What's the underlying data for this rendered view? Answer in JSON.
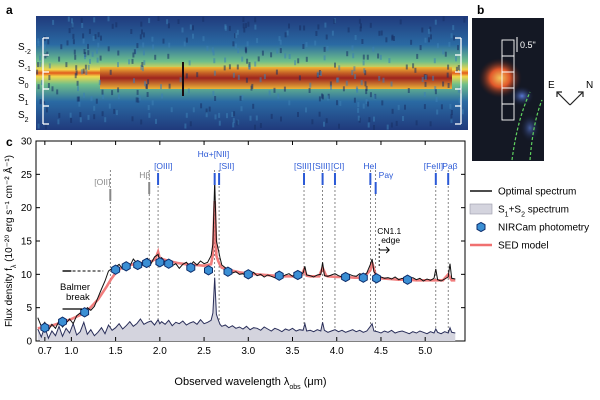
{
  "panel_labels": {
    "a": "a",
    "b": "b",
    "c": "c"
  },
  "panel_a": {
    "row_labels": [
      {
        "main": "S",
        "sub": "-2"
      },
      {
        "main": "S",
        "sub": "-1"
      },
      {
        "main": "S",
        "sub": "0"
      },
      {
        "main": "S",
        "sub": "1"
      },
      {
        "main": "S",
        "sub": "2"
      }
    ]
  },
  "panel_b": {
    "scale_label": "0.5\"",
    "compass": {
      "east": "E",
      "north": "N"
    }
  },
  "colors": {
    "optimal": "#111111",
    "s1s2_fill": "#d4d4de",
    "s1s2_line": "#2a2f5a",
    "photometry_fill": "#3b8fd4",
    "photometry_edge": "#0d2d6b",
    "sed": "#f07070",
    "line_marker": "#2b59d6",
    "gray_marker": "#888888"
  },
  "chart_data": {
    "type": "line",
    "xlabel": "Observed wavelength λ",
    "xlabel_sub": "obs",
    "xlabel_unit": " (μm)",
    "ylabel": "Flux density f",
    "ylabel_sub": "λ",
    "ylabel_units": " (10⁻²⁰ erg s⁻¹ cm⁻² Å⁻¹)",
    "xlim": [
      0.6,
      5.45
    ],
    "ylim": [
      0,
      30
    ],
    "x_ticks": [
      0.7,
      1.0,
      1.5,
      2.0,
      2.5,
      3.0,
      3.5,
      4.0,
      4.5,
      5.0
    ],
    "x_tick_labels": [
      "0.7",
      "1.0",
      "1.5",
      "2.0",
      "2.5",
      "3.0",
      "3.5",
      "4.0",
      "4.5",
      "5.0"
    ],
    "y_ticks": [
      0,
      5,
      10,
      15,
      20,
      25,
      30
    ],
    "y_tick_labels": [
      "0",
      "5",
      "10",
      "15",
      "20",
      "25",
      "30"
    ],
    "legend": {
      "position": "right",
      "entries": [
        {
          "key": "optimal",
          "label": "Optimal spectrum"
        },
        {
          "key": "s1s2",
          "label": "S",
          "parts": [
            "S",
            "1",
            "+S",
            "2",
            " spectrum"
          ]
        },
        {
          "key": "phot",
          "label": "NIRCam photometry"
        },
        {
          "key": "sed",
          "label": "SED model"
        }
      ]
    },
    "emission_lines": [
      {
        "name": "[OII]",
        "x": 1.44,
        "color": "gray"
      },
      {
        "name": "Hβ",
        "x": 1.88,
        "color": "gray"
      },
      {
        "name": "[OIII]",
        "x": 1.98,
        "color": "blue"
      },
      {
        "name": "Hα+[NII]",
        "x": 2.62,
        "color": "blue"
      },
      {
        "name": "[SII]",
        "x": 2.67,
        "color": "blue"
      },
      {
        "name": "[SIII]",
        "x": 3.63,
        "color": "blue"
      },
      {
        "name": "[SIII]",
        "x": 3.84,
        "color": "blue"
      },
      {
        "name": "[CI]",
        "x": 3.98,
        "color": "blue"
      },
      {
        "name": "HeI",
        "x": 4.38,
        "color": "blue"
      },
      {
        "name": "Paγ",
        "x": 4.44,
        "color": "blue"
      },
      {
        "name": "[FeII]",
        "x": 5.12,
        "color": "blue"
      },
      {
        "name": "Paβ",
        "x": 5.26,
        "color": "blue"
      }
    ],
    "annotations": {
      "balmer_line1": "Balmer",
      "balmer_line2": "break",
      "cn_line1": "CN1.1",
      "cn_line2": "edge"
    },
    "balmer_levels": {
      "upper": 10.5,
      "lower": 4.8
    },
    "series": [
      {
        "name": "Optimal spectrum",
        "x": [
          0.62,
          0.66,
          0.7,
          0.74,
          0.78,
          0.82,
          0.86,
          0.9,
          0.94,
          0.98,
          1.02,
          1.06,
          1.1,
          1.14,
          1.18,
          1.22,
          1.26,
          1.3,
          1.34,
          1.38,
          1.42,
          1.46,
          1.5,
          1.54,
          1.58,
          1.62,
          1.66,
          1.7,
          1.74,
          1.78,
          1.82,
          1.86,
          1.9,
          1.94,
          1.98,
          2.0,
          2.02,
          2.06,
          2.1,
          2.14,
          2.18,
          2.22,
          2.26,
          2.3,
          2.34,
          2.38,
          2.42,
          2.46,
          2.5,
          2.54,
          2.58,
          2.6,
          2.62,
          2.64,
          2.66,
          2.68,
          2.7,
          2.74,
          2.78,
          2.82,
          2.86,
          2.9,
          2.94,
          2.98,
          3.02,
          3.06,
          3.1,
          3.14,
          3.18,
          3.22,
          3.26,
          3.3,
          3.34,
          3.38,
          3.42,
          3.46,
          3.5,
          3.54,
          3.58,
          3.62,
          3.64,
          3.66,
          3.7,
          3.74,
          3.78,
          3.82,
          3.84,
          3.86,
          3.9,
          3.94,
          3.98,
          4.02,
          4.06,
          4.1,
          4.14,
          4.18,
          4.22,
          4.26,
          4.3,
          4.34,
          4.38,
          4.4,
          4.42,
          4.46,
          4.5,
          4.54,
          4.58,
          4.62,
          4.66,
          4.7,
          4.74,
          4.78,
          4.82,
          4.86,
          4.9,
          4.94,
          4.98,
          5.02,
          5.06,
          5.1,
          5.12,
          5.14,
          5.18,
          5.22,
          5.26,
          5.28,
          5.3,
          5.34
        ],
        "y": [
          3.5,
          2.2,
          2.8,
          1.6,
          2.5,
          1.9,
          3.0,
          2.1,
          2.7,
          3.3,
          2.6,
          3.8,
          4.2,
          3.9,
          5.0,
          4.6,
          5.2,
          6.5,
          7.8,
          9.0,
          10.5,
          10.9,
          11.1,
          11.5,
          10.8,
          11.6,
          11.2,
          12.3,
          11.7,
          11.0,
          12.1,
          12.4,
          11.6,
          12.6,
          13.0,
          12.0,
          12.5,
          11.8,
          12.2,
          11.3,
          11.6,
          10.9,
          11.5,
          11.8,
          11.2,
          11.9,
          11.4,
          12.0,
          11.6,
          11.8,
          12.8,
          14.5,
          24.0,
          15.0,
          13.8,
          12.5,
          11.4,
          11.0,
          10.6,
          10.2,
          10.4,
          10.0,
          10.1,
          9.7,
          9.9,
          10.3,
          9.8,
          10.0,
          9.6,
          9.9,
          9.7,
          9.5,
          9.8,
          9.6,
          9.9,
          10.1,
          9.7,
          10.0,
          9.8,
          10.2,
          11.2,
          9.9,
          9.8,
          9.6,
          9.9,
          10.0,
          11.8,
          9.8,
          9.7,
          9.9,
          10.1,
          9.8,
          9.6,
          9.9,
          10.0,
          9.8,
          9.7,
          10.1,
          9.9,
          10.2,
          11.5,
          12.3,
          10.4,
          9.8,
          9.6,
          9.4,
          9.5,
          9.3,
          9.6,
          9.2,
          9.4,
          9.1,
          9.3,
          9.5,
          9.2,
          9.4,
          9.0,
          9.3,
          9.1,
          9.4,
          10.8,
          9.2,
          9.0,
          9.3,
          9.6,
          11.6,
          9.4,
          9.3
        ]
      },
      {
        "name": "S1+S2 spectrum",
        "x": [
          0.62,
          0.66,
          0.7,
          0.74,
          0.78,
          0.82,
          0.86,
          0.9,
          0.94,
          0.98,
          1.02,
          1.06,
          1.1,
          1.14,
          1.18,
          1.22,
          1.26,
          1.3,
          1.34,
          1.38,
          1.42,
          1.46,
          1.5,
          1.54,
          1.58,
          1.62,
          1.66,
          1.7,
          1.74,
          1.78,
          1.82,
          1.86,
          1.9,
          1.94,
          1.98,
          2.0,
          2.02,
          2.06,
          2.1,
          2.14,
          2.18,
          2.22,
          2.26,
          2.3,
          2.34,
          2.38,
          2.42,
          2.46,
          2.5,
          2.54,
          2.58,
          2.6,
          2.62,
          2.64,
          2.66,
          2.68,
          2.7,
          2.74,
          2.78,
          2.82,
          2.86,
          2.9,
          2.94,
          2.98,
          3.02,
          3.06,
          3.1,
          3.14,
          3.18,
          3.22,
          3.26,
          3.3,
          3.34,
          3.38,
          3.42,
          3.46,
          3.5,
          3.54,
          3.58,
          3.62,
          3.64,
          3.66,
          3.7,
          3.74,
          3.78,
          3.82,
          3.84,
          3.86,
          3.9,
          3.94,
          3.98,
          4.02,
          4.06,
          4.1,
          4.14,
          4.18,
          4.22,
          4.26,
          4.3,
          4.34,
          4.38,
          4.4,
          4.42,
          4.46,
          4.5,
          4.54,
          4.58,
          4.62,
          4.66,
          4.7,
          4.74,
          4.78,
          4.82,
          4.86,
          4.9,
          4.94,
          4.98,
          5.02,
          5.06,
          5.1,
          5.12,
          5.14,
          5.18,
          5.22,
          5.26,
          5.28,
          5.3,
          5.34
        ],
        "y": [
          1.8,
          0.6,
          2.1,
          0.4,
          1.5,
          0.8,
          2.2,
          0.7,
          1.9,
          1.2,
          2.6,
          0.9,
          1.4,
          2.8,
          1.0,
          1.7,
          0.8,
          1.3,
          2.0,
          1.1,
          2.4,
          1.6,
          2.0,
          2.6,
          1.8,
          2.3,
          2.9,
          2.2,
          2.6,
          3.3,
          2.5,
          2.8,
          3.0,
          2.4,
          3.2,
          2.6,
          2.9,
          2.5,
          3.1,
          2.3,
          2.8,
          2.6,
          3.0,
          2.4,
          2.7,
          2.9,
          2.5,
          3.2,
          2.6,
          2.8,
          3.1,
          4.2,
          9.5,
          4.0,
          3.2,
          2.5,
          2.2,
          2.4,
          2.0,
          2.3,
          1.9,
          2.1,
          1.8,
          2.2,
          1.7,
          2.0,
          1.9,
          1.6,
          2.1,
          1.8,
          1.5,
          1.9,
          1.7,
          1.4,
          1.8,
          1.6,
          1.9,
          1.5,
          1.7,
          1.6,
          2.6,
          1.5,
          1.6,
          1.4,
          1.7,
          1.5,
          2.8,
          1.6,
          1.3,
          1.5,
          1.7,
          1.4,
          1.6,
          1.3,
          1.5,
          1.7,
          1.4,
          1.6,
          1.3,
          1.5,
          2.2,
          2.6,
          1.5,
          1.4,
          1.2,
          1.5,
          1.3,
          1.6,
          1.2,
          1.4,
          1.5,
          1.3,
          1.1,
          1.4,
          1.2,
          1.5,
          1.3,
          1.1,
          1.4,
          1.2,
          1.8,
          1.3,
          1.1,
          1.4,
          1.2,
          2.0,
          1.3,
          1.2
        ]
      },
      {
        "name": "SED model",
        "x": [
          0.62,
          0.7,
          0.8,
          0.9,
          1.0,
          1.1,
          1.2,
          1.3,
          1.4,
          1.45,
          1.5,
          1.55,
          1.6,
          1.7,
          1.8,
          1.9,
          1.95,
          1.98,
          2.0,
          2.1,
          2.2,
          2.3,
          2.4,
          2.5,
          2.58,
          2.6,
          2.62,
          2.64,
          2.66,
          2.68,
          2.7,
          2.8,
          2.9,
          3.0,
          3.1,
          3.2,
          3.3,
          3.4,
          3.5,
          3.6,
          3.63,
          3.66,
          3.7,
          3.8,
          3.84,
          3.88,
          3.9,
          4.0,
          4.1,
          4.2,
          4.3,
          4.38,
          4.4,
          4.44,
          4.5,
          4.6,
          4.7,
          4.8,
          4.9,
          5.0,
          5.1,
          5.2,
          5.26,
          5.3,
          5.34
        ],
        "y": [
          1.9,
          2.1,
          2.4,
          2.8,
          3.3,
          3.9,
          4.8,
          6.2,
          8.2,
          9.3,
          10.2,
          10.8,
          11.2,
          11.5,
          11.7,
          11.9,
          12.3,
          13.4,
          12.4,
          12.0,
          11.7,
          11.5,
          11.4,
          11.3,
          11.5,
          13.0,
          21.0,
          12.8,
          12.0,
          11.4,
          11.0,
          10.6,
          10.3,
          10.1,
          10.0,
          9.9,
          9.8,
          9.7,
          9.7,
          9.8,
          10.7,
          9.8,
          9.7,
          9.7,
          11.0,
          9.8,
          9.7,
          9.6,
          9.6,
          9.5,
          9.5,
          10.6,
          11.8,
          9.9,
          9.4,
          9.3,
          9.2,
          9.2,
          9.1,
          9.1,
          9.1,
          9.1,
          10.0,
          9.1,
          9.1
        ]
      },
      {
        "name": "NIRCam photometry",
        "x": [
          0.7,
          0.9,
          1.15,
          1.5,
          1.62,
          1.75,
          1.85,
          2.0,
          2.1,
          2.35,
          2.55,
          2.77,
          3.0,
          3.35,
          3.56,
          4.1,
          4.3,
          4.45,
          4.8
        ],
        "y": [
          2.0,
          2.9,
          4.3,
          10.7,
          11.2,
          11.4,
          11.7,
          11.8,
          11.6,
          11.0,
          10.6,
          10.4,
          10.0,
          9.8,
          9.9,
          9.6,
          9.5,
          9.4,
          9.2
        ]
      }
    ]
  }
}
